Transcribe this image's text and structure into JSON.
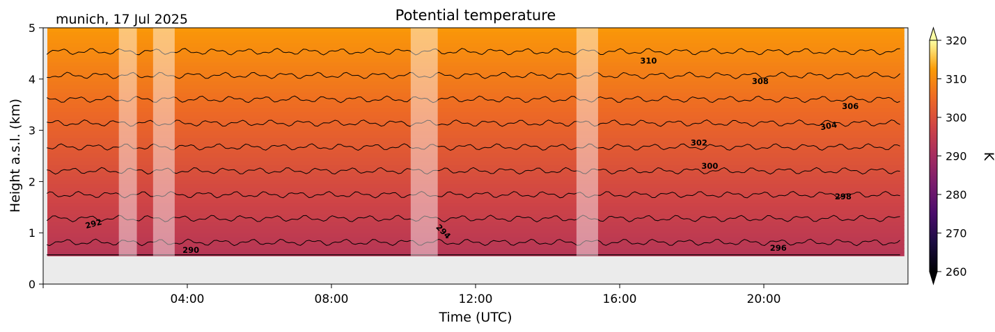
{
  "header": {
    "title": "Potential temperature",
    "location_label": "munich, 17 Jul 2025"
  },
  "chart_data": {
    "type": "heatmap",
    "title": "Potential temperature",
    "xlabel": "Time (UTC)",
    "ylabel": "Height a.s.l. (km)",
    "xlim_hours": [
      0,
      24
    ],
    "ylim_km": [
      0,
      5
    ],
    "x_ticks": [
      "04:00",
      "08:00",
      "12:00",
      "16:00",
      "20:00"
    ],
    "x_tick_hours": [
      4,
      8,
      12,
      16,
      20
    ],
    "y_ticks": [
      "0",
      "1",
      "2",
      "3",
      "4",
      "5"
    ],
    "y_tick_values": [
      0,
      1,
      2,
      3,
      4,
      5
    ],
    "data_bottom_km": 0.55,
    "colorbar": {
      "label": "K",
      "min": 260,
      "max": 320,
      "ticks": [
        "260",
        "270",
        "280",
        "290",
        "300",
        "310",
        "320"
      ],
      "tick_values": [
        260,
        270,
        280,
        290,
        300,
        310,
        320
      ],
      "extend": "both",
      "colormap": "inferno"
    },
    "gap_intervals_hours": [
      [
        2.1,
        2.6
      ],
      [
        3.05,
        3.65
      ],
      [
        10.2,
        10.95
      ],
      [
        14.8,
        15.4
      ]
    ],
    "contour_levels": [
      290,
      292,
      294,
      296,
      298,
      300,
      302,
      304,
      306,
      308,
      310
    ],
    "contour_labels": [
      {
        "text": "292",
        "x_hour": 1.4,
        "y_km": 1.17,
        "angle": -15
      },
      {
        "text": "290",
        "x_hour": 4.1,
        "y_km": 0.66,
        "angle": 0
      },
      {
        "text": "294",
        "x_hour": 11.1,
        "y_km": 1.02,
        "angle": 45
      },
      {
        "text": "296",
        "x_hour": 20.4,
        "y_km": 0.7,
        "angle": 0
      },
      {
        "text": "298",
        "x_hour": 22.2,
        "y_km": 1.7,
        "angle": 0
      },
      {
        "text": "300",
        "x_hour": 18.5,
        "y_km": 2.3,
        "angle": 0
      },
      {
        "text": "302",
        "x_hour": 18.2,
        "y_km": 2.75,
        "angle": 0
      },
      {
        "text": "304",
        "x_hour": 21.8,
        "y_km": 3.08,
        "angle": -10
      },
      {
        "text": "306",
        "x_hour": 22.4,
        "y_km": 3.46,
        "angle": 0
      },
      {
        "text": "308",
        "x_hour": 19.9,
        "y_km": 3.95,
        "angle": 0
      },
      {
        "text": "310",
        "x_hour": 16.8,
        "y_km": 4.35,
        "angle": 0
      }
    ],
    "grid": false
  }
}
